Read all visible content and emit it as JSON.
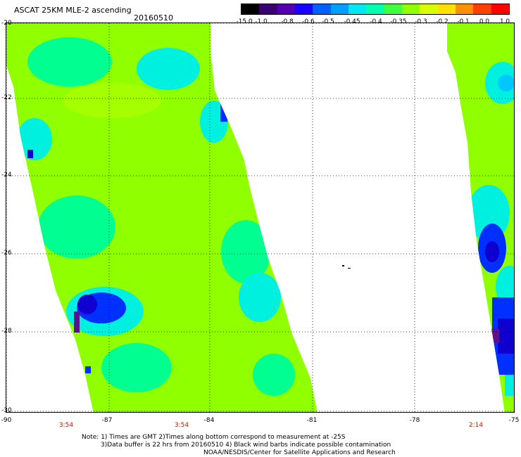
{
  "header": {
    "title": "ASCAT 25KM MLE-2 ascending",
    "date": "20160510"
  },
  "colorbar": {
    "labels": [
      "-15.0",
      "-1.0",
      "-0.8",
      "-0.6",
      "-0.5",
      "-0.45",
      "-0.4",
      "-0.35",
      "-0.3",
      "-0.2",
      "-0.1",
      "0.0",
      "1.0"
    ],
    "colors": [
      "#000000",
      "#3a0070",
      "#5200b0",
      "#1a00ff",
      "#0060ff",
      "#00a0ff",
      "#00e8f0",
      "#00ffb0",
      "#40ff40",
      "#90ff00",
      "#d8ff00",
      "#ffe000",
      "#ff9000",
      "#ff4000",
      "#ff0000"
    ]
  },
  "map": {
    "lat_labels": [
      "-20",
      "-22",
      "-24",
      "-26",
      "-28",
      "-30"
    ],
    "lon_labels": [
      "-90",
      "-87",
      "-84",
      "-81",
      "-78",
      "-75"
    ],
    "time_labels": [
      "3:54",
      "3:54",
      "2:14"
    ],
    "palette": {
      "green": "#90ff00",
      "lightgreen": "#a6ff00",
      "cyangreen": "#00ff90",
      "cyan": "#00f0e0",
      "lightblue": "#00c8ff",
      "blue": "#0030ff",
      "darkblue": "#1000d0",
      "purple": "#5a1090"
    }
  },
  "notes": {
    "line1": "Note: 1) Times are GMT 2)Times along bottom correspond to measurement at -25S",
    "line2": "3)Data buffer is 22 hrs from 20160510 4) Black wind barbs indicate possible contamination",
    "line3": "NOAA/NESDIS/Center for Satellite Applications and Research"
  }
}
